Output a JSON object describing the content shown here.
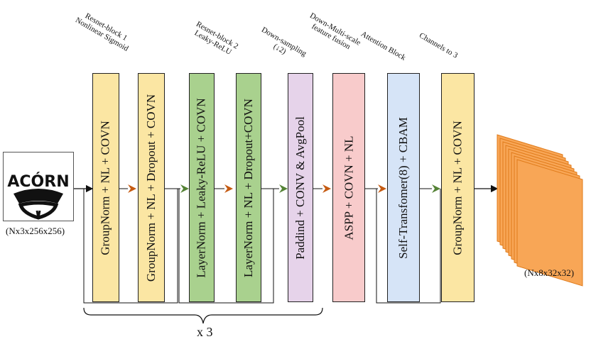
{
  "input": {
    "logo_text": "ACÓRN",
    "shape": "(Nx3x256x256)"
  },
  "output": {
    "shape": "(Nx8x32x32)"
  },
  "blocks": [
    {
      "label": "GroupNorm + NL + COVN",
      "color": "#fbe6a3"
    },
    {
      "label": "GroupNorm + NL + Dropout + COVN",
      "color": "#fbe6a3"
    },
    {
      "label": "LayerNorm + Leaky-ReLU + COVN",
      "color": "#a9d18e"
    },
    {
      "label": "LayerNorm + NL + Dropout+COVN",
      "color": "#a9d18e"
    },
    {
      "label": "Paddind + CONV & AvgPool",
      "color": "#e6d3ea"
    },
    {
      "label": "ASPP + COVN + NL",
      "color": "#f8cbcb"
    },
    {
      "label": "Self-Transfomer(8) + CBAM",
      "color": "#d6e4f7"
    },
    {
      "label": "GroupNorm + NL + COVN",
      "color": "#fbe6a3"
    }
  ],
  "stage_labels": {
    "resnet1_line1": "Resnet-block 1",
    "resnet1_line2": "Nonlinear Sigmoid",
    "resnet2_line1": "Resnet-block 2",
    "resnet2_line2": "Leaky-ReLU",
    "down_line1": "Down-sampling",
    "down_line2": "(↓2)",
    "fusion_line1": "Down-Multi-scale",
    "fusion_line2": "feature fusion",
    "attention": "Attention Block",
    "channels": "Channels to 3"
  },
  "repeat": "x 3",
  "colors": {
    "arrow_orange": "#c55a11",
    "arrow_green": "#548235",
    "stack_fill": "#f8a656",
    "stack_edge": "#e07b1a"
  }
}
